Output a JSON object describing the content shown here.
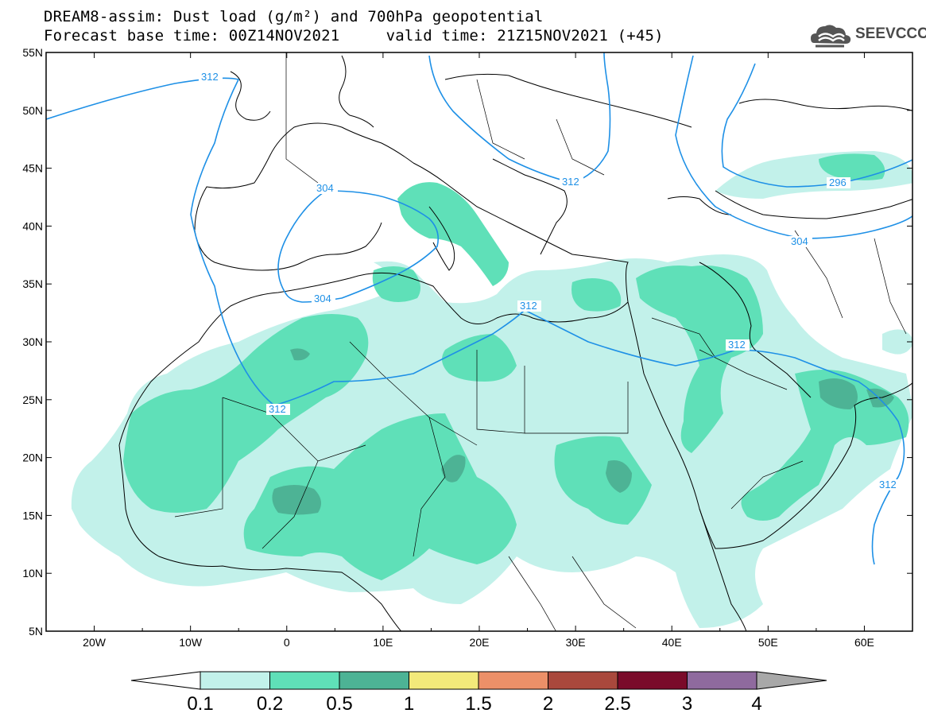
{
  "title": {
    "line1": "DREAM8-assim: Dust load (g/m²) and 700hPa geopotential",
    "line2": "Forecast base time: 00Z14NOV2021     valid time: 21Z15NOV2021 (+45)"
  },
  "logo": {
    "text": "SEEVCCC",
    "icon": "cloud-icon"
  },
  "map": {
    "lon_range": [
      -25,
      65
    ],
    "lat_range": [
      5,
      55
    ],
    "lat_ticks": [
      "55N",
      "50N",
      "45N",
      "40N",
      "35N",
      "30N",
      "25N",
      "20N",
      "15N",
      "10N",
      "5N"
    ],
    "lon_ticks": [
      "20W",
      "10W",
      "0",
      "10E",
      "20E",
      "30E",
      "40E",
      "50E",
      "60E"
    ],
    "contour_color": "#1e90e6",
    "contour_labels": [
      "312",
      "304",
      "304",
      "312",
      "312",
      "312",
      "296",
      "304",
      "312",
      "312"
    ]
  },
  "colorbar": {
    "colors": [
      "#c2f1ea",
      "#5fe0b8",
      "#4db395",
      "#f3e97a",
      "#ec9068",
      "#a9483c",
      "#7a0b2a",
      "#8f6a9e"
    ],
    "under_color": "#ffffff",
    "over_color": "#a8a8a8",
    "labels": [
      "0.1",
      "0.2",
      "0.5",
      "1",
      "1.5",
      "2",
      "2.5",
      "3",
      "4"
    ]
  }
}
